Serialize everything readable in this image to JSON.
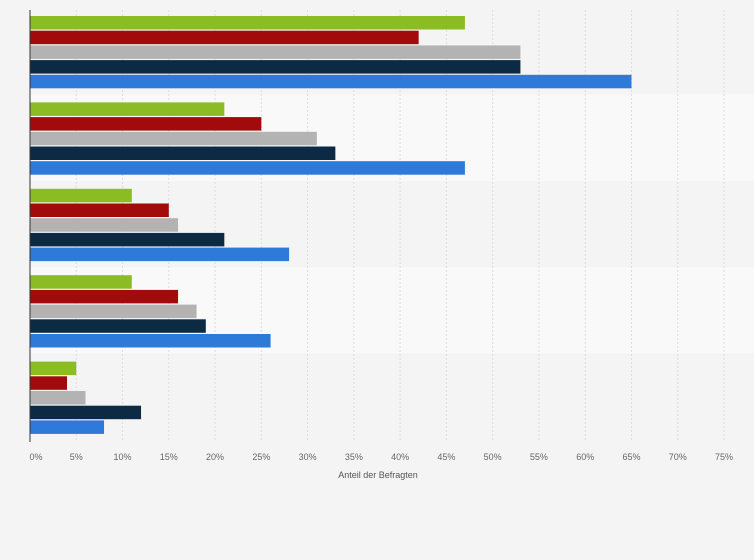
{
  "chart_data": {
    "type": "bar",
    "orientation": "horizontal",
    "title": "",
    "xlabel": "Anteil der Befragten",
    "ylabel": "",
    "xlim": [
      0,
      75
    ],
    "grid": true,
    "legend": "none",
    "x_ticks": [
      "0%",
      "5%",
      "10%",
      "15%",
      "20%",
      "25%",
      "30%",
      "35%",
      "40%",
      "45%",
      "50%",
      "55%",
      "60%",
      "65%",
      "70%",
      "75%"
    ],
    "categories": [
      "",
      "",
      "",
      "",
      ""
    ],
    "series": [
      {
        "color": "#8bbc21",
        "values": [
          47,
          21,
          11,
          11,
          5
        ]
      },
      {
        "color": "#a20b0b",
        "values": [
          42,
          25,
          15,
          16,
          4
        ]
      },
      {
        "color": "#b3b3b3",
        "values": [
          53,
          31,
          16,
          18,
          6
        ]
      },
      {
        "color": "#0d2a45",
        "values": [
          53,
          33,
          21,
          19,
          12
        ]
      },
      {
        "color": "#2e7ad8",
        "values": [
          65,
          47,
          28,
          26,
          8
        ]
      }
    ]
  }
}
